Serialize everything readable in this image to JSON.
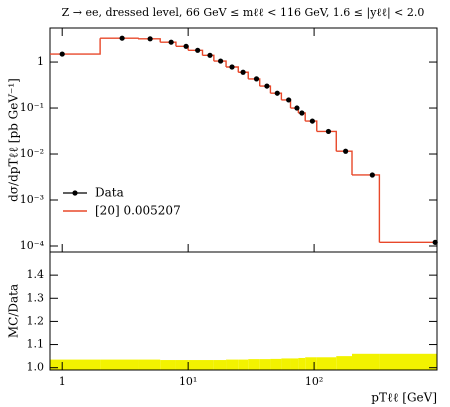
{
  "chart_data": {
    "type": "histogram_ratio",
    "title": "Z → ee, dressed level, 66 GeV ≤ mℓℓ < 116 GeV, 1.6 ≤ |yℓℓ| < 2.0",
    "y_label": "dσ/dpTℓℓ [pb GeV⁻¹]",
    "x_label": "pTℓℓ [GeV]",
    "ratio_label": "MC/Data",
    "xlog": true,
    "ylog": true,
    "xlim": [
      0.8,
      946
    ],
    "xticks": [
      1,
      {
        "value": 10,
        "label": "10¹"
      },
      {
        "value": 100,
        "label": "10²"
      }
    ],
    "ylim": [
      7.4e-05,
      5.5
    ],
    "yticks": [
      {
        "value": 0.0001,
        "label": "10⁻⁴"
      },
      {
        "value": 0.001,
        "label": "10⁻³"
      },
      {
        "value": 0.01,
        "label": "10⁻²"
      },
      {
        "value": 0.1,
        "label": "10⁻¹"
      },
      1
    ],
    "ratio_ylim": [
      0.99,
      1.5
    ],
    "ratio_yticks": [
      {
        "value": 1.0,
        "label": "1.0"
      },
      1.1,
      1.2,
      1.3,
      1.4
    ],
    "legend": "lower left",
    "data": {
      "name": "Data",
      "color": "#000000",
      "x": [
        1.0,
        2.99,
        4.99,
        7.33,
        9.63,
        11.9,
        14.9,
        18.1,
        22.3,
        27.3,
        34.9,
        42.2,
        51.0,
        62.8,
        73.1,
        80.0,
        96.9,
        130,
        178,
        290,
        915
      ],
      "values": [
        1.49,
        3.3,
        3.2,
        2.7,
        2.2,
        1.8,
        1.4,
        1.05,
        0.78,
        0.6,
        0.43,
        0.3,
        0.21,
        0.15,
        0.1,
        0.078,
        0.052,
        0.031,
        0.0115,
        0.0035,
        0.00012
      ]
    },
    "mc": {
      "name": "[20] 0.005207",
      "color": "#e8482a",
      "bins": [
        0.8,
        2,
        4,
        6,
        8,
        10,
        13,
        16,
        20,
        25,
        30,
        37,
        45,
        55,
        65,
        75,
        85,
        105,
        150,
        200,
        330,
        946
      ],
      "values": [
        1.49,
        3.3,
        3.2,
        2.7,
        2.2,
        1.8,
        1.4,
        1.05,
        0.78,
        0.6,
        0.43,
        0.3,
        0.21,
        0.15,
        0.1,
        0.078,
        0.052,
        0.031,
        0.0115,
        0.0035,
        0.00012
      ]
    },
    "band": {
      "color": "#f2f200",
      "upper": [
        1.035,
        1.035,
        1.035,
        1.033,
        1.033,
        1.033,
        1.033,
        1.033,
        1.035,
        1.035,
        1.037,
        1.037,
        1.038,
        1.04,
        1.04,
        1.042,
        1.045,
        1.045,
        1.05,
        1.06,
        1.06
      ]
    }
  }
}
